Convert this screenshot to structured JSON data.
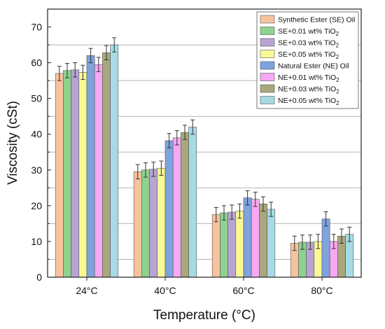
{
  "chart_data": {
    "type": "bar",
    "categories": [
      "24°C",
      "40°C",
      "60°C",
      "80°C"
    ],
    "xlabel": "Temperature (°C)",
    "ylabel": "Viscosity (cSt)",
    "ylim": [
      0,
      75
    ],
    "yticks": [
      0,
      10,
      20,
      30,
      40,
      50,
      60,
      70
    ],
    "grid": true,
    "legend": "top-right",
    "series": [
      {
        "name": "Synthetic Ester (SE) Oil",
        "color": "#f7c39e",
        "values": [
          57.0,
          29.5,
          17.5,
          9.5
        ],
        "errors": [
          2.0,
          2.0,
          2.0,
          2.0
        ]
      },
      {
        "name": "SE+0.01 wt% TiO2",
        "color": "#8fd18f",
        "values": [
          57.8,
          30.0,
          18.0,
          9.8
        ],
        "errors": [
          2.0,
          2.0,
          2.0,
          2.0
        ]
      },
      {
        "name": "SE+0.03 wt% TiO2",
        "color": "#b8a4d3",
        "values": [
          58.0,
          30.2,
          18.2,
          9.8
        ],
        "errors": [
          2.0,
          2.0,
          2.0,
          2.0
        ]
      },
      {
        "name": "SE+0.05 wt% TiO2",
        "color": "#fbf996",
        "values": [
          57.3,
          30.5,
          18.5,
          10.0
        ],
        "errors": [
          2.0,
          2.0,
          2.0,
          2.0
        ]
      },
      {
        "name": "Natural Ester (NE) Oil",
        "color": "#7ea3dd",
        "values": [
          62.0,
          38.2,
          22.2,
          16.3
        ],
        "errors": [
          2.0,
          2.0,
          2.0,
          2.0
        ]
      },
      {
        "name": "NE+0.01 wt% TiO2",
        "color": "#f7a8f2",
        "values": [
          59.5,
          39.0,
          21.8,
          10.0
        ],
        "errors": [
          2.0,
          2.0,
          2.0,
          2.0
        ]
      },
      {
        "name": "NE+0.03 wt% TiO2",
        "color": "#a8a77e",
        "values": [
          62.8,
          40.5,
          20.5,
          11.5
        ],
        "errors": [
          2.0,
          2.0,
          2.0,
          2.0
        ]
      },
      {
        "name": "NE+0.05 wt% TiO2",
        "color": "#a6dbe3",
        "values": [
          65.0,
          42.0,
          19.0,
          12.0
        ],
        "errors": [
          2.0,
          2.0,
          2.0,
          2.0
        ]
      }
    ]
  }
}
